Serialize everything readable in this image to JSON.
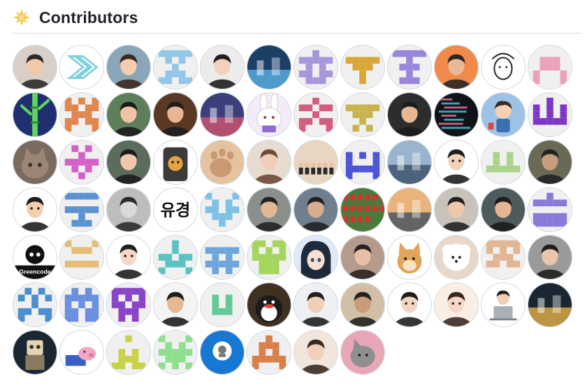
{
  "section": {
    "title": "Contributors",
    "icon": "sun-icon"
  },
  "contributors": [
    {
      "kind": "photo",
      "c1": "#d9cfc7",
      "c2": "#2b2b2b",
      "skin": "#f1c9a8"
    },
    {
      "kind": "logo",
      "c1": "#7fd1dd"
    },
    {
      "kind": "photo",
      "c1": "#8aa6b8",
      "c2": "#3a2a22",
      "skin": "#f2cdb0"
    },
    {
      "kind": "identicon",
      "c1": "#93c7e8",
      "pattern": [
        1,
        1,
        1,
        1,
        1,
        0,
        1,
        0,
        1,
        0,
        0,
        0,
        1,
        0,
        0,
        0,
        1,
        1,
        1,
        0,
        1,
        1,
        0,
        1,
        1
      ]
    },
    {
      "kind": "photo",
      "c1": "#ececec",
      "c2": "#1f1f1f",
      "skin": "#f3d1bd"
    },
    {
      "kind": "scene",
      "c1": "#1c3f66",
      "c2": "#5bb1e6"
    },
    {
      "kind": "identicon",
      "c1": "#a896dc",
      "pattern": [
        0,
        0,
        1,
        0,
        0,
        1,
        1,
        1,
        1,
        1,
        0,
        1,
        0,
        1,
        0,
        1,
        1,
        0,
        1,
        1,
        0,
        1,
        1,
        1,
        0
      ]
    },
    {
      "kind": "identicon",
      "c1": "#d9a637",
      "pattern": [
        0,
        0,
        0,
        0,
        0,
        1,
        1,
        1,
        1,
        1,
        0,
        1,
        1,
        1,
        0,
        0,
        0,
        1,
        0,
        0,
        0,
        0,
        1,
        0,
        0
      ]
    },
    {
      "kind": "identicon",
      "c1": "#9a85dd",
      "pattern": [
        1,
        1,
        1,
        1,
        1,
        0,
        0,
        1,
        0,
        0,
        0,
        1,
        1,
        1,
        0,
        0,
        0,
        1,
        0,
        0,
        0,
        1,
        1,
        1,
        0
      ]
    },
    {
      "kind": "photo",
      "c1": "#f08a4b",
      "c2": "#2a2622",
      "skin": "#e9b995"
    },
    {
      "kind": "sketch",
      "c1": "#ffffff",
      "c2": "#222222"
    },
    {
      "kind": "identicon",
      "c1": "#eaa1bb",
      "pattern": [
        0,
        0,
        0,
        0,
        0,
        0,
        1,
        1,
        1,
        0,
        0,
        1,
        1,
        1,
        0,
        1,
        0,
        0,
        0,
        1,
        1,
        0,
        0,
        0,
        1
      ]
    },
    {
      "kind": "bamboo",
      "c1": "#1f2f6f",
      "c2": "#5fd45f"
    },
    {
      "kind": "identicon",
      "c1": "#e2864f",
      "pattern": [
        1,
        0,
        1,
        0,
        1,
        1,
        1,
        0,
        1,
        1,
        0,
        1,
        1,
        1,
        0,
        1,
        1,
        0,
        1,
        1,
        1,
        0,
        0,
        0,
        1
      ]
    },
    {
      "kind": "photo",
      "c1": "#5d7e5b",
      "c2": "#1b1b1b",
      "skin": "#efc4a4"
    },
    {
      "kind": "photo",
      "c1": "#5a3924",
      "c2": "#1e1e1e",
      "skin": "#e9b692"
    },
    {
      "kind": "scene",
      "c1": "#3b3f7c",
      "c2": "#d2556f"
    },
    {
      "kind": "bunny",
      "c1": "#f3ecf8",
      "c2": "#ffffff"
    },
    {
      "kind": "identicon",
      "c1": "#d35d7f",
      "pattern": [
        0,
        0,
        1,
        0,
        0,
        1,
        1,
        0,
        1,
        1,
        0,
        0,
        1,
        0,
        0,
        1,
        1,
        0,
        1,
        1,
        1,
        0,
        0,
        0,
        1
      ]
    },
    {
      "kind": "identicon",
      "c1": "#c9b34e",
      "pattern": [
        0,
        0,
        0,
        0,
        0,
        1,
        1,
        1,
        1,
        1,
        0,
        1,
        1,
        1,
        0,
        0,
        0,
        1,
        0,
        0,
        0,
        1,
        0,
        1,
        0
      ]
    },
    {
      "kind": "photo",
      "c1": "#2d2d2d",
      "c2": "#1b1b1b",
      "skin": "#e8b893"
    },
    {
      "kind": "code",
      "c1": "#101318",
      "c2": "#3ec1d3"
    },
    {
      "kind": "figure",
      "c1": "#9dc2e6",
      "c2": "#3a2b22"
    },
    {
      "kind": "identicon",
      "c1": "#7b38c7",
      "pattern": [
        0,
        0,
        1,
        0,
        0,
        1,
        0,
        1,
        0,
        1,
        1,
        0,
        1,
        0,
        1,
        1,
        1,
        1,
        1,
        1,
        0,
        0,
        0,
        0,
        0
      ]
    },
    {
      "kind": "cat",
      "c1": "#7b6a5e",
      "c2": "#3d3027"
    },
    {
      "kind": "identicon",
      "c1": "#d461c8",
      "pattern": [
        0,
        1,
        0,
        1,
        0,
        0,
        0,
        1,
        0,
        0,
        1,
        1,
        1,
        1,
        1,
        0,
        1,
        0,
        1,
        0,
        0,
        0,
        1,
        0,
        0
      ]
    },
    {
      "kind": "photo",
      "c1": "#5b6b5c",
      "c2": "#1c1c1c",
      "skin": "#efc7ad"
    },
    {
      "kind": "bear",
      "c1": "#3b3b3b",
      "c2": "#e6a23a"
    },
    {
      "kind": "paw",
      "c1": "#c89a74",
      "c2": "#e6c3a0"
    },
    {
      "kind": "photo",
      "c1": "#e8dbd0",
      "c2": "#6f4a36",
      "skin": "#f0cdb6"
    },
    {
      "kind": "group",
      "c1": "#e8d6c3",
      "c2": "#2a2a2a"
    },
    {
      "kind": "identicon",
      "c1": "#4b55d6",
      "pattern": [
        0,
        0,
        0,
        0,
        0,
        1,
        0,
        1,
        0,
        1,
        1,
        0,
        0,
        0,
        1,
        1,
        1,
        1,
        1,
        1,
        1,
        0,
        0,
        0,
        1
      ]
    },
    {
      "kind": "scene",
      "c1": "#9ab3cf",
      "c2": "#3a4e66"
    },
    {
      "kind": "cartoon",
      "c1": "#ffffff",
      "c2": "#1f1f1f",
      "skin": "#f4d3bb"
    },
    {
      "kind": "identicon",
      "c1": "#acd38a",
      "pattern": [
        0,
        0,
        0,
        0,
        0,
        0,
        1,
        0,
        1,
        0,
        0,
        1,
        0,
        1,
        0,
        1,
        1,
        1,
        1,
        1,
        0,
        0,
        0,
        0,
        0
      ]
    },
    {
      "kind": "photo",
      "c1": "#6a6955",
      "c2": "#232323",
      "skin": "#c89d7d"
    },
    {
      "kind": "cartoon",
      "c1": "#ffffff",
      "c2": "#1f1f1f",
      "skin": "#f3cfae"
    },
    {
      "kind": "identicon",
      "c1": "#5a93cf",
      "pattern": [
        1,
        1,
        1,
        1,
        1,
        0,
        0,
        0,
        0,
        0,
        1,
        1,
        1,
        1,
        1,
        0,
        0,
        1,
        0,
        0,
        0,
        1,
        1,
        1,
        0
      ]
    },
    {
      "kind": "photo",
      "c1": "#bdbdbd",
      "c2": "#2b2b2b",
      "skin": "#d9d9d9"
    },
    {
      "kind": "text",
      "c1": "#ffffff",
      "c2": "#111111",
      "label": "유경"
    },
    {
      "kind": "identicon",
      "c1": "#7fc0e5",
      "pattern": [
        1,
        0,
        0,
        0,
        1,
        0,
        1,
        0,
        1,
        0,
        1,
        1,
        0,
        1,
        1,
        0,
        1,
        1,
        1,
        0,
        0,
        0,
        1,
        0,
        0
      ]
    },
    {
      "kind": "photo",
      "c1": "#8a8f8c",
      "c2": "#222222",
      "skin": "#e0b894"
    },
    {
      "kind": "photo",
      "c1": "#6f7f8e",
      "c2": "#222222",
      "skin": "#d8ad8f"
    },
    {
      "kind": "tulips",
      "c1": "#d2342c",
      "c2": "#4d7a3c"
    },
    {
      "kind": "scene",
      "c1": "#e9b37a",
      "c2": "#44505f"
    },
    {
      "kind": "photo",
      "c1": "#c9c2bb",
      "c2": "#222222",
      "skin": "#efc8ac"
    },
    {
      "kind": "photo",
      "c1": "#4e5b5d",
      "c2": "#1c1c1c",
      "skin": "#e4b692"
    },
    {
      "kind": "identicon",
      "c1": "#8a7ad8",
      "pattern": [
        0,
        0,
        1,
        0,
        0,
        1,
        1,
        1,
        1,
        1,
        0,
        0,
        0,
        0,
        0,
        1,
        1,
        1,
        1,
        1,
        1,
        1,
        1,
        1,
        1
      ]
    },
    {
      "kind": "greencode",
      "c1": "#ffffff",
      "c2": "#111111",
      "label": "Greencode"
    },
    {
      "kind": "identicon",
      "c1": "#e4bd76",
      "pattern": [
        1,
        0,
        0,
        0,
        1,
        0,
        1,
        1,
        1,
        0,
        0,
        0,
        0,
        0,
        0,
        1,
        1,
        1,
        1,
        1,
        0,
        0,
        0,
        0,
        0
      ]
    },
    {
      "kind": "cartoon",
      "c1": "#ffffff",
      "c2": "#1f1f1f",
      "skin": "#f6d6c4"
    },
    {
      "kind": "identicon",
      "c1": "#5bc1c1",
      "pattern": [
        0,
        0,
        1,
        0,
        0,
        0,
        0,
        1,
        0,
        0,
        1,
        1,
        0,
        1,
        1,
        0,
        1,
        1,
        1,
        0,
        1,
        0,
        0,
        0,
        1
      ]
    },
    {
      "kind": "identicon",
      "c1": "#6ea6dc",
      "pattern": [
        0,
        0,
        0,
        0,
        0,
        1,
        1,
        1,
        1,
        1,
        0,
        1,
        0,
        1,
        0,
        1,
        1,
        1,
        1,
        1,
        0,
        1,
        0,
        1,
        0
      ]
    },
    {
      "kind": "identicon",
      "c1": "#a4d65e",
      "pattern": [
        1,
        1,
        0,
        1,
        1,
        1,
        0,
        1,
        0,
        1,
        1,
        1,
        1,
        1,
        1,
        0,
        1,
        1,
        1,
        0,
        0,
        1,
        1,
        1,
        0
      ]
    },
    {
      "kind": "anime",
      "c1": "#dfe9f7",
      "c2": "#1d2a3a"
    },
    {
      "kind": "photo",
      "c1": "#b59b8b",
      "c2": "#2a2220",
      "skin": "#e9c0a5"
    },
    {
      "kind": "doge",
      "c1": "#ffffff",
      "c2": "#e2a45a"
    },
    {
      "kind": "dog",
      "c1": "#e7d8cb",
      "c2": "#ffffff"
    },
    {
      "kind": "identicon",
      "c1": "#e2b593",
      "pattern": [
        1,
        1,
        1,
        1,
        1,
        1,
        0,
        1,
        0,
        1,
        0,
        1,
        1,
        1,
        0,
        1,
        1,
        0,
        1,
        1,
        0,
        0,
        0,
        0,
        0
      ]
    },
    {
      "kind": "photo",
      "c1": "#9a9a9a",
      "c2": "#1f1f1f",
      "skin": "#ecc6ab"
    },
    {
      "kind": "identicon",
      "c1": "#4b8fd0",
      "pattern": [
        0,
        1,
        0,
        1,
        0,
        1,
        0,
        1,
        0,
        1,
        0,
        0,
        1,
        0,
        0,
        1,
        1,
        0,
        1,
        1,
        1,
        0,
        0,
        0,
        1
      ]
    },
    {
      "kind": "identicon",
      "c1": "#6b8fe0",
      "pattern": [
        0,
        1,
        0,
        1,
        0,
        1,
        1,
        1,
        1,
        1,
        1,
        0,
        1,
        0,
        1,
        1,
        1,
        0,
        1,
        1,
        1,
        1,
        0,
        1,
        1
      ]
    },
    {
      "kind": "identicon",
      "c1": "#8a44c7",
      "pattern": [
        1,
        1,
        1,
        1,
        1,
        1,
        0,
        1,
        0,
        1,
        1,
        1,
        0,
        1,
        1,
        0,
        1,
        1,
        1,
        0,
        0,
        1,
        0,
        1,
        0
      ]
    },
    {
      "kind": "photo",
      "c1": "#f4f4f4",
      "c2": "#1e1e1e",
      "skin": "#e5b995"
    },
    {
      "kind": "identicon",
      "c1": "#62c997",
      "pattern": [
        0,
        0,
        0,
        0,
        0,
        0,
        1,
        0,
        1,
        0,
        0,
        1,
        0,
        1,
        0,
        0,
        1,
        1,
        1,
        0,
        0,
        0,
        0,
        0,
        0
      ]
    },
    {
      "kind": "pingu",
      "c1": "#3f3022",
      "c2": "#1b1b1b"
    },
    {
      "kind": "photo",
      "c1": "#eef0f3",
      "c2": "#1f1f1f",
      "skin": "#f1cfb6"
    },
    {
      "kind": "photo",
      "c1": "#d1bfa6",
      "c2": "#222222",
      "skin": "#c99c77"
    },
    {
      "kind": "cartoon",
      "c1": "#ffffff",
      "c2": "#1f1f1f",
      "skin": "#f3d4c1"
    },
    {
      "kind": "cartoon",
      "c1": "#fbeee5",
      "c2": "#3a2a22",
      "skin": "#f6d7c6"
    },
    {
      "kind": "laptop",
      "c1": "#ffffff",
      "c2": "#202020"
    },
    {
      "kind": "scene",
      "c1": "#1b2633",
      "c2": "#e5b247"
    },
    {
      "kind": "robot",
      "c1": "#1b2633",
      "c2": "#e4d4b2"
    },
    {
      "kind": "pig",
      "c1": "#ffffff",
      "c2": "#f3a6c4"
    },
    {
      "kind": "identicon",
      "c1": "#c9d24a",
      "pattern": [
        0,
        0,
        1,
        0,
        0,
        0,
        0,
        0,
        0,
        0,
        0,
        1,
        0,
        1,
        0,
        0,
        1,
        1,
        1,
        0,
        1,
        1,
        0,
        1,
        1
      ]
    },
    {
      "kind": "identicon",
      "c1": "#8fe08c",
      "pattern": [
        1,
        0,
        0,
        0,
        1,
        0,
        1,
        0,
        1,
        0,
        1,
        1,
        1,
        1,
        1,
        0,
        1,
        1,
        1,
        0,
        1,
        0,
        1,
        0,
        1
      ]
    },
    {
      "kind": "badge",
      "c1": "#1778d4",
      "c2": "#ffffff"
    },
    {
      "kind": "identicon",
      "c1": "#d9804a",
      "pattern": [
        0,
        0,
        1,
        0,
        0,
        0,
        1,
        1,
        1,
        0,
        0,
        1,
        0,
        1,
        0,
        1,
        1,
        1,
        1,
        1,
        1,
        0,
        0,
        0,
        1
      ]
    },
    {
      "kind": "photo",
      "c1": "#f2e6dc",
      "c2": "#3a2b22",
      "skin": "#f2d0b9"
    },
    {
      "kind": "pinkcat",
      "c1": "#e9a6b7",
      "c2": "#8f8f8f"
    }
  ]
}
